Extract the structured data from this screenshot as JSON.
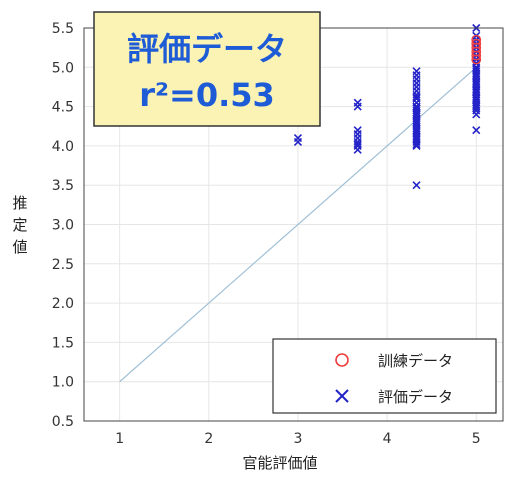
{
  "chart_data": {
    "type": "scatter",
    "xlabel": "官能評価値",
    "ylabel": "推定値",
    "xlim": [
      0.6,
      5.3
    ],
    "ylim": [
      0.5,
      5.5
    ],
    "xticks": [
      "1",
      "2",
      "3",
      "4",
      "5"
    ],
    "yticks": [
      "0.5",
      "1.0",
      "1.5",
      "2.0",
      "2.5",
      "3.0",
      "3.5",
      "4.0",
      "4.5",
      "5.0",
      "5.5"
    ],
    "grid": true,
    "reference_line": {
      "x": [
        1,
        5
      ],
      "y": [
        1,
        5
      ],
      "color": "#9fbfd6"
    },
    "annotation": {
      "line1": "評価データ",
      "line2": "r²=0.53",
      "background": "#fbf3b3"
    },
    "legend_position": "bottom-right",
    "series": [
      {
        "name": "訓練データ",
        "marker": "circle",
        "color": "#ef3d3d",
        "x": [
          5,
          5,
          5,
          5,
          5,
          5
        ],
        "y": [
          5.35,
          5.3,
          5.25,
          5.2,
          5.15,
          5.1
        ]
      },
      {
        "name": "評価データ",
        "marker": "x",
        "color": "#2323c8",
        "x": [
          3,
          3,
          3.67,
          3.67,
          3.67,
          3.67,
          3.67,
          3.67,
          3.67,
          3.67,
          3.67,
          4.33,
          4.33,
          4.33,
          4.33,
          4.33,
          4.33,
          4.33,
          4.33,
          4.33,
          4.33,
          4.33,
          4.33,
          4.33,
          4.33,
          4.33,
          4.33,
          4.33,
          4.33,
          4.33,
          4.33,
          4.33,
          4.33,
          4.33,
          4.33,
          4.33,
          4.33,
          4.33,
          4.33,
          4.33,
          4.33,
          4.33,
          4.33,
          4.33,
          5,
          5,
          5,
          5,
          5,
          5,
          5,
          5,
          5,
          5,
          5,
          5,
          5,
          5,
          5,
          5,
          5,
          5,
          5,
          5,
          5,
          5,
          5,
          5,
          5,
          5,
          5,
          5,
          5,
          5,
          5,
          5,
          5,
          5
        ],
        "y": [
          4.05,
          4.1,
          4.55,
          4.5,
          4.2,
          4.15,
          4.1,
          4.05,
          4.0,
          3.95,
          4.02,
          3.5,
          4.0,
          4.02,
          4.05,
          4.08,
          4.1,
          4.12,
          4.15,
          4.18,
          4.2,
          4.22,
          4.25,
          4.28,
          4.3,
          4.32,
          4.35,
          4.38,
          4.4,
          4.42,
          4.45,
          4.48,
          4.5,
          4.55,
          4.6,
          4.65,
          4.7,
          4.75,
          4.8,
          4.85,
          4.9,
          4.95,
          4.62,
          4.5,
          4.2,
          4.4,
          4.45,
          4.5,
          4.55,
          4.6,
          4.65,
          4.7,
          4.75,
          4.8,
          4.85,
          4.9,
          4.95,
          5.0,
          5.05,
          5.1,
          5.15,
          5.2,
          5.25,
          5.3,
          5.35,
          5.4,
          5.5,
          4.48,
          4.52,
          4.58,
          4.62,
          4.68,
          4.72,
          4.78,
          4.82,
          4.88,
          4.92,
          4.98
        ]
      }
    ]
  }
}
